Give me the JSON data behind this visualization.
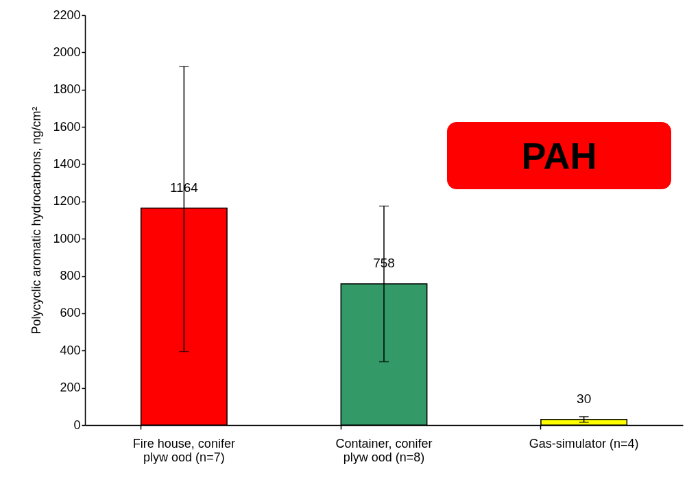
{
  "chart_data": {
    "type": "bar",
    "ylabel": "Polycyclic aromatic hydrocarbons, ng/cm²",
    "categories": [
      "Fire house, conifer\nplyw ood (n=7)",
      "Container, conifer\nplyw ood  (n=8)",
      "Gas-simulator (n=4)"
    ],
    "values": [
      1164,
      758,
      30
    ],
    "colors": [
      "#ff0000",
      "#339966",
      "#ffff00"
    ],
    "errors": [
      [
        395,
        1925
      ],
      [
        340,
        1175
      ],
      [
        15,
        45
      ]
    ],
    "data_labels": true,
    "ylim": [
      0,
      2200
    ],
    "yticks": [
      0,
      200,
      400,
      600,
      800,
      1000,
      1200,
      1400,
      1600,
      1800,
      2000,
      2200
    ],
    "grid": false,
    "annotations": [
      "PAH"
    ]
  }
}
